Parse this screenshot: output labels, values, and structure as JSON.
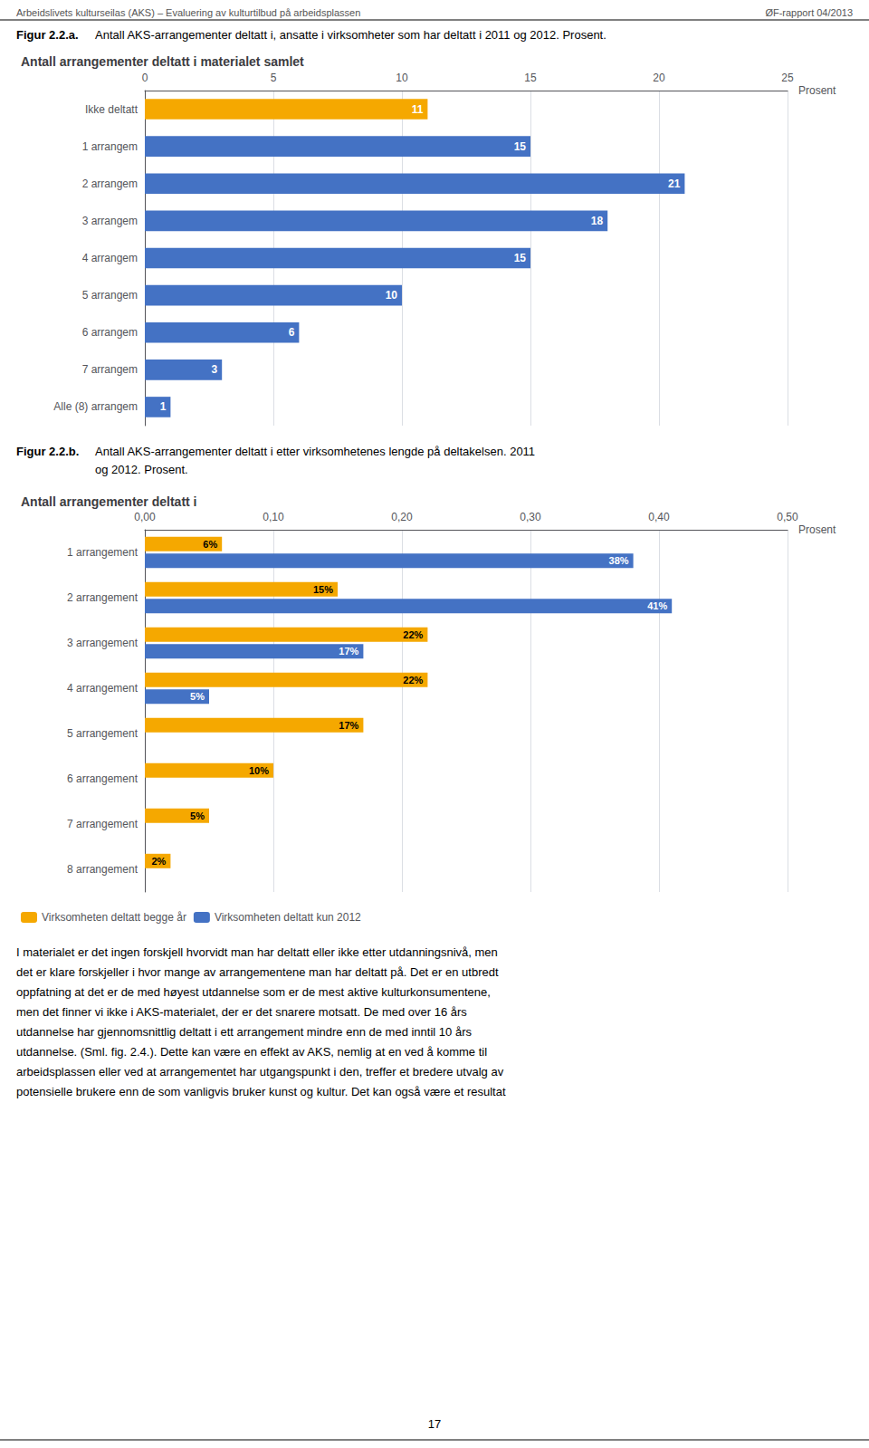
{
  "chart_data": [
    {
      "type": "bar",
      "orientation": "horizontal",
      "title": "Antall arrangementer deltatt i materialet samlet",
      "xlabel": "Prosent",
      "annotations": [
        "Arbeidslivets kulturseilas (AKS) – Evaluering av kulturtilbud på arbeidsplassen",
        "ØF-rapport 04/2013",
        "Figur 2.2.a.",
        "Antall AKS-arrangementer deltatt i, ansatte i virksomheter som har deltatt i 2011 og 2012. Prosent."
      ],
      "categories": [
        "Ikke deltatt",
        "1 arrangem",
        "2 arrangem",
        "3 arrangem",
        "4 arrangem",
        "5 arrangem",
        "6 arrangem",
        "7 arrangem",
        "Alle (8) arrangem"
      ],
      "values": [
        11,
        15,
        21,
        18,
        15,
        10,
        6,
        3,
        1
      ],
      "colors": [
        "#F5A800",
        "#4472C4",
        "#4472C4",
        "#4472C4",
        "#4472C4",
        "#4472C4",
        "#4472C4",
        "#4472C4",
        "#4472C4"
      ],
      "xlim": [
        0,
        25
      ],
      "xticks": [
        0,
        5,
        10,
        15,
        20,
        25
      ],
      "grid": true,
      "data_labels": true
    },
    {
      "type": "bar",
      "orientation": "horizontal",
      "title": "Antall arrangementer deltatt i",
      "xlabel": "Prosent",
      "annotations": [
        "Figur 2.2.b.",
        "Antall AKS-arrangementer deltatt i etter virksomhetenes lengde på deltakelsen. 2011",
        "og 2012. Prosent.",
        "I materialet er det ingen forskjell hvorvidt man har deltatt eller ikke etter utdanningsnivå, men\ndet er klare forskjeller i hvor mange av arrangementene man har deltatt på. Det er en utbredt\noppfatning at det er de med høyest utdannelse som er de mest aktive kulturkonsumentene,\nmen det finner vi ikke i AKS-materialet, der er det snarere motsatt. De med over 16 års\nutdannelse har gjennomsnittlig deltatt i ett arrangement mindre enn de med inntil 10 års\nutdannelse. (Sml. fig. 2.4.). Dette kan være en effekt av AKS, nemlig at en ved å komme til\narbeidsplassen eller ved at arrangementet har utgangspunkt i den, treffer et bredere utvalg av\npotensielle brukere enn de som vanligvis bruker kunst og kultur. Det kan også være et resultat",
        "17"
      ],
      "categories": [
        "1 arrangement",
        "2 arrangement",
        "3 arrangement",
        "4 arrangement",
        "5 arrangement",
        "6 arrangement",
        "7 arrangement",
        "8 arrangement"
      ],
      "series": [
        {
          "name": "Virksomheten deltatt begge år",
          "color": "#F5A800",
          "values": [
            0.06,
            0.15,
            0.22,
            0.22,
            0.17,
            0.1,
            0.05,
            0.02
          ],
          "value_labels": [
            "6%",
            "15%",
            "22%",
            "22%",
            "17%",
            "10%",
            "5%",
            "2%"
          ]
        },
        {
          "name": "Virksomheten deltatt kun 2012",
          "color": "#4472C4",
          "values": [
            0.38,
            0.41,
            0.17,
            0.05,
            0.0,
            0.0,
            0.0,
            0.0
          ],
          "value_labels": [
            "38%",
            "41%",
            "17%",
            "5%",
            null,
            null,
            null,
            null
          ]
        }
      ],
      "xlim": [
        0,
        0.5
      ],
      "xticks": [
        {
          "value": 0.0,
          "label": "0,00"
        },
        {
          "value": 0.1,
          "label": "0,10"
        },
        {
          "value": 0.2,
          "label": "0,20"
        },
        {
          "value": 0.3,
          "label": "0,30"
        },
        {
          "value": 0.4,
          "label": "0,40"
        },
        {
          "value": 0.5,
          "label": "0,50"
        }
      ],
      "grid": true,
      "legend": "lower left",
      "data_labels": true
    }
  ]
}
